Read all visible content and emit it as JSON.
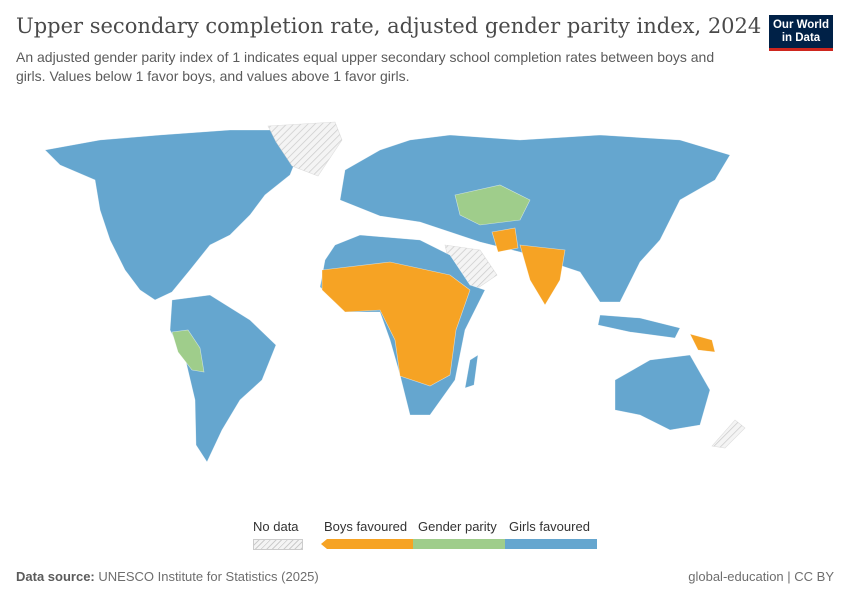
{
  "header": {
    "title": "Upper secondary completion rate, adjusted gender parity index, 2024",
    "subtitle": "An adjusted gender parity index of 1 indicates equal upper secondary school completion rates between boys and girls. Values below 1 favor boys, and values above 1 favor girls.",
    "logo_text": "Our World in Data"
  },
  "legend": {
    "no_data": "No data",
    "categories": [
      {
        "label": "Boys favoured",
        "color": "#f6a324"
      },
      {
        "label": "Gender parity",
        "color": "#9fcd8b"
      },
      {
        "label": "Girls favoured",
        "color": "#65a6cf"
      }
    ]
  },
  "colors": {
    "boys": "#f6a324",
    "parity": "#9fcd8b",
    "girls": "#65a6cf",
    "no_data": "#e6e6e6"
  },
  "footer": {
    "source_label": "Data source:",
    "source": "UNESCO Institute for Statistics (2025)",
    "right": "global-education | CC BY"
  }
}
